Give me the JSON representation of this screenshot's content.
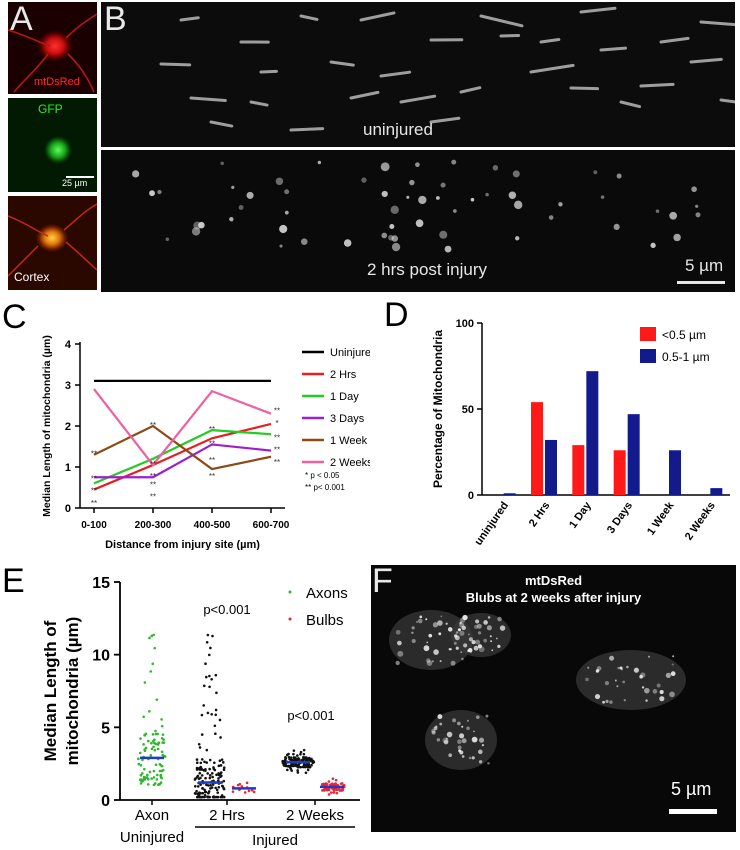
{
  "panels": {
    "A": {
      "letter": "A",
      "channels": [
        {
          "label": "mtDsRed",
          "color": "#ff2a2a"
        },
        {
          "label": "GFP",
          "color": "#2ee82e"
        },
        {
          "label": "Cortex",
          "color": "#ffffff"
        }
      ],
      "scalebar": "25 µm"
    },
    "B": {
      "letter": "B",
      "top_label": "uninjured",
      "bottom_label": "2 hrs post injury",
      "scalebar": "5 µm"
    },
    "C": {
      "letter": "C"
    },
    "D": {
      "letter": "D"
    },
    "E": {
      "letter": "E"
    },
    "F": {
      "letter": "F",
      "title_line1": "mtDsRed",
      "title_line2": "Blubs at 2 weeks after injury",
      "scalebar": "5 µm"
    }
  },
  "chart_data": [
    {
      "id": "C",
      "type": "line",
      "xlabel": "Distance from injury site (µm)",
      "ylabel": "Median Length of mitochondria (µm)",
      "categories": [
        "0-100",
        "200-300",
        "400-500",
        "600-700"
      ],
      "ylim": [
        0,
        4
      ],
      "yticks": [
        0,
        1,
        2,
        3,
        4
      ],
      "series": [
        {
          "name": "Uninjured",
          "color": "#000000",
          "values": [
            3.1,
            3.1,
            3.1,
            3.1
          ]
        },
        {
          "name": "2 Hrs",
          "color": "#e62020",
          "values": [
            0.45,
            1.05,
            1.7,
            2.05
          ]
        },
        {
          "name": "1 Day",
          "color": "#22cc22",
          "values": [
            0.6,
            1.2,
            1.9,
            1.8
          ]
        },
        {
          "name": "3 Days",
          "color": "#9b1fd1",
          "values": [
            0.75,
            0.75,
            1.55,
            1.4
          ]
        },
        {
          "name": "1 Week",
          "color": "#8b4a16",
          "values": [
            1.3,
            2.0,
            0.95,
            1.25
          ]
        },
        {
          "name": "2 Weeks",
          "color": "#f060a0",
          "values": [
            2.9,
            1.05,
            2.85,
            2.3
          ]
        }
      ],
      "significance_marks": [
        {
          "x": 0,
          "y": 1.35,
          "text": "**"
        },
        {
          "x": 0,
          "y": 0.75,
          "text": "**"
        },
        {
          "x": 0,
          "y": 0.45,
          "text": "**"
        },
        {
          "x": 0,
          "y": 0.15,
          "text": "**"
        },
        {
          "x": 1,
          "y": 2.05,
          "text": "**"
        },
        {
          "x": 1,
          "y": 1.1,
          "text": "**"
        },
        {
          "x": 1,
          "y": 0.8,
          "text": "**"
        },
        {
          "x": 1,
          "y": 0.6,
          "text": "**"
        },
        {
          "x": 1,
          "y": 0.3,
          "text": "**"
        },
        {
          "x": 2,
          "y": 1.95,
          "text": "**"
        },
        {
          "x": 2,
          "y": 1.6,
          "text": "**"
        },
        {
          "x": 2,
          "y": 1.2,
          "text": "**"
        },
        {
          "x": 2,
          "y": 0.8,
          "text": "**"
        },
        {
          "x": 3,
          "y": 2.4,
          "text": "**"
        },
        {
          "x": 3,
          "y": 2.1,
          "text": "*"
        },
        {
          "x": 3,
          "y": 1.75,
          "text": "**"
        },
        {
          "x": 3,
          "y": 1.45,
          "text": "**"
        },
        {
          "x": 3,
          "y": 1.15,
          "text": "**"
        }
      ],
      "notes": [
        "* p < 0.05",
        "** p< 0.001"
      ]
    },
    {
      "id": "D",
      "type": "bar",
      "ylabel": "Percentage of Mitochondria",
      "categories": [
        "uninjured",
        "2 Hrs",
        "1 Day",
        "3 Days",
        "1 Week",
        "2 Weeks"
      ],
      "ylim": [
        0,
        100
      ],
      "yticks": [
        0,
        50,
        100
      ],
      "legend_position": "top-right",
      "series": [
        {
          "name": "<0.5 µm",
          "color": "#ff1a1a",
          "values": [
            0,
            54,
            29,
            26,
            0,
            0
          ]
        },
        {
          "name": "0.5-1 µm",
          "color": "#121a8c",
          "values": [
            1,
            32,
            72,
            47,
            26,
            4
          ]
        }
      ]
    },
    {
      "id": "E",
      "type": "scatter",
      "ylabel_line1": "Median Length of",
      "ylabel_line2": "mitochondria (µm)",
      "ylim": [
        0,
        15
      ],
      "yticks": [
        0,
        5,
        10,
        15
      ],
      "categories": [
        "Axon",
        "2 Hrs",
        "2 Weeks"
      ],
      "group_labels": [
        "Uninjured",
        "Injured"
      ],
      "legend_position": "top-right",
      "series": [
        {
          "name": "Axons",
          "color": "#2db82d"
        },
        {
          "name": "Bulbs",
          "color": "#ee2233"
        }
      ],
      "groups": [
        {
          "category": "Axon",
          "series": "Axons",
          "color": "#2db82d",
          "median": 2.9,
          "n": 95,
          "min": 0.3,
          "max": 11.5,
          "spread": 1.9
        },
        {
          "category": "2 Hrs",
          "series": "Axons",
          "color": "#111111",
          "median": 1.2,
          "n": 160,
          "min": 0.2,
          "max": 12.0,
          "spread": 1.6
        },
        {
          "category": "2 Hrs",
          "series": "Bulbs",
          "color": "#ee2233",
          "median": 0.8,
          "n": 12,
          "min": 0.4,
          "max": 1.5,
          "spread": 0.3
        },
        {
          "category": "2 Weeks",
          "series": "Axons",
          "color": "#111111",
          "median": 2.6,
          "n": 130,
          "min": 1.8,
          "max": 3.5,
          "spread": 0.35
        },
        {
          "category": "2 Weeks",
          "series": "Bulbs",
          "color": "#ee2233",
          "median": 0.9,
          "n": 70,
          "min": 0.3,
          "max": 1.5,
          "spread": 0.25
        }
      ],
      "annotations": [
        {
          "category": "2 Hrs",
          "text": "p<0.001"
        },
        {
          "category": "2 Weeks",
          "text": "p<0.001"
        }
      ]
    }
  ]
}
